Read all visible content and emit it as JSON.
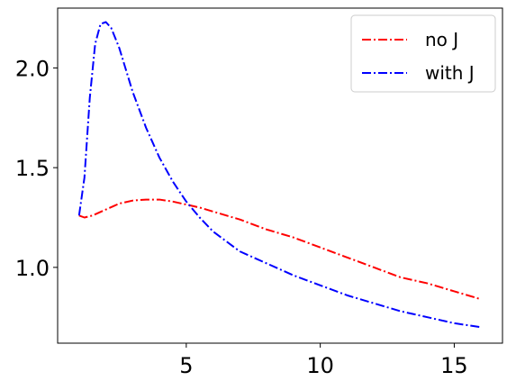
{
  "chart_data": {
    "type": "line",
    "title": "",
    "xlabel": "",
    "ylabel": "",
    "xlim": [
      0.2,
      16.8
    ],
    "ylim": [
      0.62,
      2.3
    ],
    "xticks": [
      5,
      10,
      15
    ],
    "yticks": [
      1.0,
      1.5,
      2.0
    ],
    "xtick_labels": [
      "5",
      "10",
      "15"
    ],
    "ytick_labels": [
      "1.0",
      "1.5",
      "2.0"
    ],
    "grid": false,
    "legend_position": "top-right",
    "series": [
      {
        "name": "no J",
        "color": "#ff0000",
        "linestyle": "dash-dot",
        "x": [
          1,
          1.2,
          1.5,
          2,
          2.5,
          3,
          3.5,
          4,
          4.5,
          5,
          5.5,
          6,
          7,
          8,
          9,
          10,
          11,
          12,
          13,
          14,
          15,
          16
        ],
        "y": [
          1.26,
          1.25,
          1.26,
          1.29,
          1.32,
          1.335,
          1.34,
          1.34,
          1.33,
          1.315,
          1.3,
          1.28,
          1.24,
          1.19,
          1.15,
          1.1,
          1.05,
          1.0,
          0.95,
          0.92,
          0.88,
          0.84
        ]
      },
      {
        "name": "with J",
        "color": "#0000ff",
        "linestyle": "dash-dot",
        "x": [
          1,
          1.2,
          1.4,
          1.6,
          1.8,
          2.0,
          2.2,
          2.5,
          3,
          3.5,
          4,
          4.5,
          5,
          5.5,
          6,
          7,
          8,
          9,
          10,
          11,
          12,
          13,
          14,
          15,
          16
        ],
        "y": [
          1.26,
          1.45,
          1.85,
          2.12,
          2.22,
          2.23,
          2.2,
          2.1,
          1.88,
          1.7,
          1.55,
          1.43,
          1.33,
          1.25,
          1.18,
          1.08,
          1.02,
          0.96,
          0.91,
          0.86,
          0.82,
          0.78,
          0.75,
          0.72,
          0.7
        ]
      }
    ]
  }
}
